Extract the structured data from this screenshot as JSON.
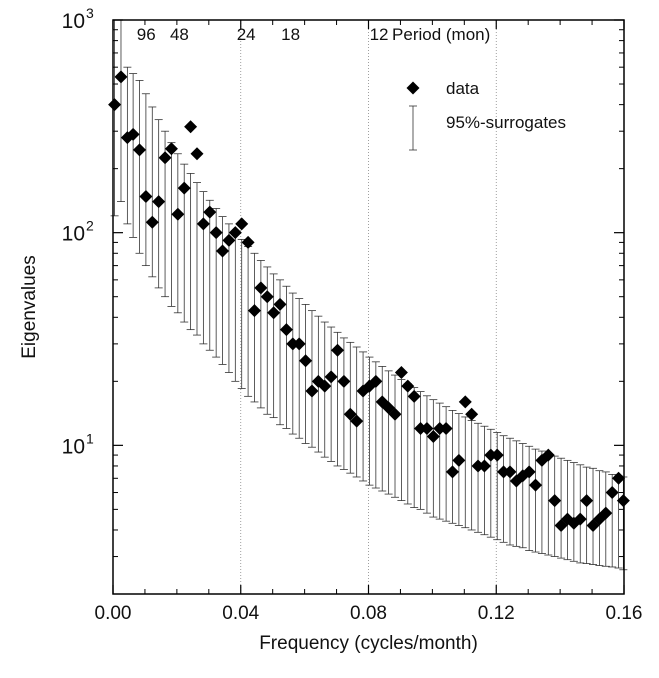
{
  "chart_data": {
    "type": "scatter",
    "title": "",
    "xlabel": "Frequency (cycles/month)",
    "ylabel": "Eigenvalues",
    "xlim": [
      0,
      0.16
    ],
    "ylim": [
      2,
      1000
    ],
    "yscale": "log",
    "x_ticks": [
      "0.00",
      "0.04",
      "0.08",
      "0.12",
      "0.16"
    ],
    "x_tick_values": [
      0,
      0.04,
      0.08,
      0.12,
      0.16
    ],
    "y_major_ticks": [
      10,
      100,
      1000
    ],
    "y_tick_labels": [
      {
        "base": "10",
        "exp": "1",
        "value": 10
      },
      {
        "base": "10",
        "exp": "2",
        "value": 100
      },
      {
        "base": "10",
        "exp": "3",
        "value": 1000
      }
    ],
    "top_axis": {
      "title": "Period (mon)",
      "labels": [
        {
          "text": "96",
          "freq": 0.0104
        },
        {
          "text": "48",
          "freq": 0.0208
        },
        {
          "text": "24",
          "freq": 0.0417
        },
        {
          "text": "18",
          "freq": 0.0556
        },
        {
          "text": "12",
          "freq": 0.0833
        }
      ]
    },
    "gridlines_x": [
      0.04,
      0.08,
      0.12
    ],
    "legend": {
      "position": "top-right",
      "entries": [
        {
          "label": "data",
          "marker": "diamond"
        },
        {
          "label": "95%-surrogates",
          "marker": "errorbar"
        }
      ]
    },
    "series": [
      {
        "name": "data",
        "x": [
          0.0005,
          0.0025,
          0.0045,
          0.0063,
          0.0083,
          0.0103,
          0.0123,
          0.0143,
          0.0163,
          0.0183,
          0.0203,
          0.0223,
          0.0243,
          0.0263,
          0.0283,
          0.0303,
          0.0323,
          0.0343,
          0.0363,
          0.0383,
          0.0403,
          0.0423,
          0.0443,
          0.0463,
          0.0483,
          0.0503,
          0.0523,
          0.0543,
          0.0563,
          0.0583,
          0.0603,
          0.0623,
          0.0643,
          0.0663,
          0.0683,
          0.0703,
          0.0723,
          0.0743,
          0.0763,
          0.0783,
          0.0803,
          0.0823,
          0.0843,
          0.0863,
          0.0883,
          0.0903,
          0.0923,
          0.0943,
          0.0963,
          0.0983,
          0.1003,
          0.1023,
          0.1043,
          0.1063,
          0.1083,
          0.1103,
          0.1123,
          0.1143,
          0.1163,
          0.1183,
          0.1203,
          0.1223,
          0.1243,
          0.1263,
          0.1283,
          0.1303,
          0.1323,
          0.1343,
          0.1363,
          0.1383,
          0.1403,
          0.1423,
          0.1443,
          0.1463,
          0.1483,
          0.1503,
          0.1523,
          0.1543,
          0.1563,
          0.1583,
          0.1598
        ],
        "y": [
          400,
          540,
          280,
          290,
          245,
          148,
          112,
          140,
          225,
          248,
          122,
          162,
          315,
          235,
          110,
          125,
          100,
          82,
          92,
          100,
          110,
          90,
          43,
          55,
          50,
          42,
          46,
          35,
          30,
          30,
          25,
          18,
          20,
          19,
          21,
          28,
          20,
          14,
          13,
          18,
          19,
          20,
          16,
          15,
          14,
          22,
          19,
          17,
          12,
          12,
          11,
          12,
          12,
          7.5,
          8.5,
          16,
          14,
          8,
          8,
          9,
          9,
          7.5,
          7.5,
          6.8,
          7.2,
          7.5,
          6.5,
          8.5,
          9,
          5.5,
          4.2,
          4.5,
          4.3,
          4.5,
          5.5,
          4.2,
          4.5,
          4.8,
          6,
          7,
          5.5
        ]
      },
      {
        "name": "95%-surrogates",
        "x": [
          0.0005,
          0.0025,
          0.0045,
          0.0063,
          0.0083,
          0.0103,
          0.0123,
          0.0143,
          0.0163,
          0.0183,
          0.0203,
          0.0223,
          0.0243,
          0.0263,
          0.0283,
          0.0303,
          0.0323,
          0.0343,
          0.0363,
          0.0383,
          0.0403,
          0.0423,
          0.0443,
          0.0463,
          0.0483,
          0.0503,
          0.0523,
          0.0543,
          0.0563,
          0.0583,
          0.0603,
          0.0623,
          0.0643,
          0.0663,
          0.0683,
          0.0703,
          0.0723,
          0.0743,
          0.0763,
          0.0783,
          0.0803,
          0.0823,
          0.0843,
          0.0863,
          0.0883,
          0.0903,
          0.0923,
          0.0943,
          0.0963,
          0.0983,
          0.1003,
          0.1023,
          0.1043,
          0.1063,
          0.1083,
          0.1103,
          0.1123,
          0.1143,
          0.1163,
          0.1183,
          0.1203,
          0.1223,
          0.1243,
          0.1263,
          0.1283,
          0.1303,
          0.1323,
          0.1343,
          0.1363,
          0.1383,
          0.1403,
          0.1423,
          0.1443,
          0.1463,
          0.1483,
          0.1503,
          0.1523,
          0.1543,
          0.1563,
          0.1583,
          0.1598
        ],
        "lower": [
          120,
          140,
          110,
          95,
          80,
          70,
          62,
          55,
          50,
          45,
          42,
          38,
          35,
          33,
          30,
          28,
          26,
          24,
          22,
          20,
          18.5,
          17,
          16,
          15,
          14,
          13.5,
          12.5,
          12,
          11.3,
          10.8,
          10.2,
          9.8,
          9.3,
          8.8,
          8.4,
          8,
          7.7,
          7.4,
          7.1,
          6.8,
          6.5,
          6.3,
          6.1,
          5.9,
          5.7,
          5.5,
          5.3,
          5.1,
          5,
          4.8,
          4.6,
          4.5,
          4.4,
          4.3,
          4.2,
          4.1,
          4,
          3.9,
          3.8,
          3.7,
          3.6,
          3.5,
          3.4,
          3.35,
          3.3,
          3.2,
          3.15,
          3.1,
          3.05,
          3,
          2.95,
          2.9,
          2.85,
          2.8,
          2.78,
          2.75,
          2.72,
          2.7,
          2.68,
          2.65,
          2.6
        ],
        "upper": [
          1000,
          1000,
          600,
          560,
          520,
          450,
          390,
          340,
          300,
          265,
          235,
          210,
          190,
          172,
          156,
          142,
          130,
          119,
          110,
          101,
          93,
          86,
          80,
          74,
          69,
          64,
          60,
          56,
          52,
          49,
          46,
          43,
          40.5,
          38,
          36,
          34,
          32,
          30.5,
          29,
          27.5,
          26,
          24.7,
          23.5,
          22.4,
          21.4,
          20.4,
          19.5,
          18.7,
          17.9,
          17.1,
          16.4,
          15.8,
          15.2,
          14.6,
          14.1,
          13.6,
          13.1,
          12.7,
          12.3,
          11.9,
          11.5,
          11.1,
          10.8,
          10.5,
          10.2,
          9.9,
          9.6,
          9.4,
          9.1,
          8.9,
          8.7,
          8.5,
          8.3,
          8.1,
          7.9,
          7.8,
          7.6,
          7.5,
          7.3,
          7.2,
          7.1
        ]
      }
    ]
  }
}
